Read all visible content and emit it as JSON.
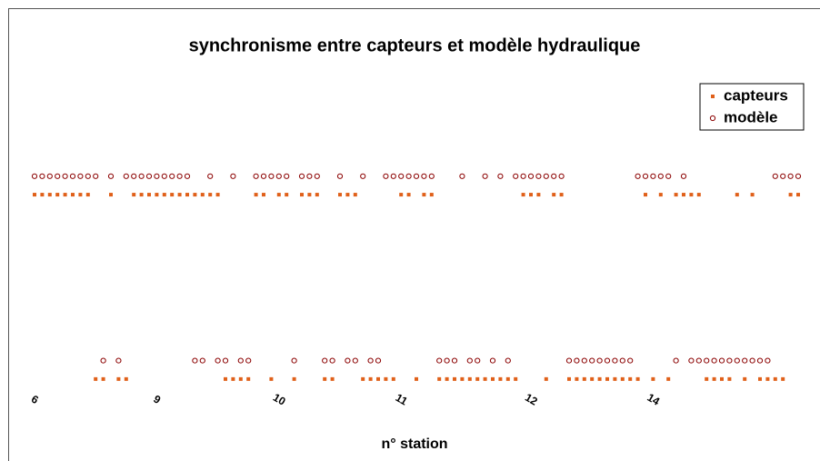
{
  "chart_data": {
    "type": "scatter",
    "title": "synchronisme entre capteurs et modèle hydraulique",
    "x_label": "n° station",
    "x": [
      0,
      1,
      2,
      3,
      4,
      5,
      6,
      7,
      8,
      9,
      10,
      11,
      12,
      13,
      14,
      15,
      16,
      17,
      18,
      19,
      20,
      21,
      22,
      23,
      24,
      25,
      26,
      27,
      28,
      29,
      30,
      31,
      32,
      33,
      34,
      35,
      36,
      37,
      38,
      39,
      40,
      41,
      42,
      43,
      44,
      45,
      46,
      47,
      48,
      49,
      50,
      51,
      52,
      53,
      54,
      55,
      56,
      57,
      58,
      59,
      60,
      61,
      62,
      63,
      64,
      65,
      66,
      67,
      68,
      69,
      70,
      71,
      72,
      73,
      74,
      75,
      76,
      77,
      78,
      79,
      80,
      81,
      82,
      83,
      84,
      85,
      86,
      87,
      88,
      89,
      90,
      91,
      92,
      93,
      94,
      95,
      96,
      97,
      98,
      99,
      100
    ],
    "series": [
      {
        "name": "capteurs",
        "color": "#e0601a",
        "marker": "square",
        "values": [
          1,
          1,
          1,
          1,
          1,
          1,
          1,
          1,
          0,
          0,
          1,
          0,
          0,
          1,
          1,
          1,
          1,
          1,
          1,
          1,
          1,
          1,
          1,
          1,
          1,
          0,
          0,
          0,
          0,
          1,
          1,
          0,
          1,
          1,
          0,
          1,
          1,
          1,
          0,
          0,
          1,
          1,
          1,
          0,
          0,
          0,
          0,
          0,
          1,
          1,
          0,
          1,
          1,
          0,
          0,
          0,
          0,
          0,
          0,
          0,
          0,
          0,
          0,
          0,
          1,
          1,
          1,
          0,
          1,
          1,
          0,
          0,
          0,
          0,
          0,
          0,
          0,
          0,
          0,
          0,
          1,
          0,
          1,
          0,
          1,
          1,
          1,
          1,
          0,
          0,
          0,
          0,
          1,
          0,
          1,
          0,
          0,
          0,
          0,
          1,
          1
        ]
      },
      {
        "name": "modèle",
        "color": "#8b0000",
        "marker": "circle",
        "values": [
          1.1,
          1.1,
          1.1,
          1.1,
          1.1,
          1.1,
          1.1,
          1.1,
          1.1,
          0.1,
          1.1,
          0.1,
          1.1,
          1.1,
          1.1,
          1.1,
          1.1,
          1.1,
          1.1,
          1.1,
          1.1,
          0.1,
          0.1,
          1.1,
          0.1,
          0.1,
          1.1,
          0.1,
          0.1,
          1.1,
          1.1,
          1.1,
          1.1,
          1.1,
          0.1,
          1.1,
          1.1,
          1.1,
          0.1,
          0.1,
          1.1,
          0.1,
          0.1,
          1.1,
          0.1,
          0.1,
          1.1,
          1.1,
          1.1,
          1.1,
          1.1,
          1.1,
          1.1,
          0.1,
          0.1,
          0.1,
          1.1,
          0.1,
          0.1,
          1.1,
          0.1,
          1.1,
          0.1,
          1.1,
          1.1,
          1.1,
          1.1,
          1.1,
          1.1,
          1.1,
          0.1,
          0.1,
          0.1,
          0.1,
          0.1,
          0.1,
          0.1,
          0.1,
          0.1,
          1.1,
          1.1,
          1.1,
          1.1,
          1.1,
          0.1,
          1.1,
          0.1,
          0.1,
          0.1,
          0.1,
          0.1,
          0.1,
          0.1,
          0.1,
          0.1,
          0.1,
          0.1,
          1.1,
          1.1,
          1.1,
          1.1
        ]
      }
    ],
    "xlim": [
      0,
      100
    ],
    "ylim": [
      -0.05,
      1.75
    ],
    "xticks": [
      {
        "value": 0,
        "label": "6"
      },
      {
        "value": 16,
        "label": "9"
      },
      {
        "value": 32,
        "label": "10"
      },
      {
        "value": 48,
        "label": "11"
      },
      {
        "value": 65,
        "label": "12"
      },
      {
        "value": 81,
        "label": "14"
      }
    ],
    "legend": "top right"
  }
}
